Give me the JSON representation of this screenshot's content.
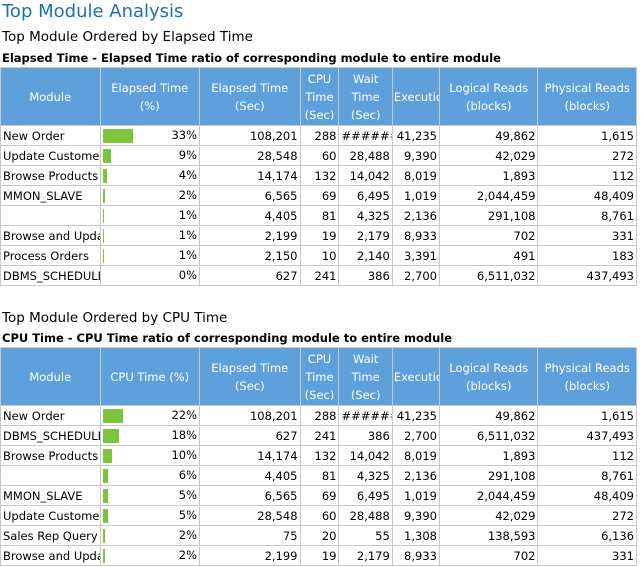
{
  "page": {
    "title": "Top Module Analysis"
  },
  "colors": {
    "header_bg": "#5ea0dc",
    "header_text": "#ffffff",
    "bar": "#7dc43d",
    "title": "#1f6fb3"
  },
  "sections": [
    {
      "title": "Top Module Ordered by Elapsed Time",
      "subtitle": "Elapsed Time - Elapsed Time ratio of corresponding module to entire module",
      "headers": [
        "Module",
        "Elapsed Time (%)",
        "Elapsed Time (Sec)",
        "CPU Time (Sec)",
        "Wait Time (Sec)",
        "Executions",
        "Logical Reads (blocks)",
        "Physical Reads (blocks)"
      ],
      "rows": [
        {
          "module": "New Order",
          "pct": "33%",
          "pct_value": 33,
          "elapsed": "108,201",
          "cpu": "288",
          "wait": "######",
          "exec": "41,235",
          "logical": "49,862",
          "physical": "1,615"
        },
        {
          "module": "Update Customer",
          "pct": "9%",
          "pct_value": 9,
          "elapsed": "28,548",
          "cpu": "60",
          "wait": "28,488",
          "exec": "9,390",
          "logical": "42,029",
          "physical": "272"
        },
        {
          "module": "Browse Products",
          "pct": "4%",
          "pct_value": 4,
          "elapsed": "14,174",
          "cpu": "132",
          "wait": "14,042",
          "exec": "8,019",
          "logical": "1,893",
          "physical": "112"
        },
        {
          "module": "MMON_SLAVE",
          "pct": "2%",
          "pct_value": 2,
          "elapsed": "6,565",
          "cpu": "69",
          "wait": "6,495",
          "exec": "1,019",
          "logical": "2,044,459",
          "physical": "48,409"
        },
        {
          "module": "",
          "pct": "1%",
          "pct_value": 1,
          "elapsed": "4,405",
          "cpu": "81",
          "wait": "4,325",
          "exec": "2,136",
          "logical": "291,108",
          "physical": "8,761"
        },
        {
          "module": "Browse and Update Orders",
          "pct": "1%",
          "pct_value": 1,
          "elapsed": "2,199",
          "cpu": "19",
          "wait": "2,179",
          "exec": "8,933",
          "logical": "702",
          "physical": "331"
        },
        {
          "module": "Process Orders",
          "pct": "1%",
          "pct_value": 1,
          "elapsed": "2,150",
          "cpu": "10",
          "wait": "2,140",
          "exec": "3,391",
          "logical": "491",
          "physical": "183"
        },
        {
          "module": "DBMS_SCHEDULER",
          "pct": "0%",
          "pct_value": 0,
          "elapsed": "627",
          "cpu": "241",
          "wait": "386",
          "exec": "2,700",
          "logical": "6,511,032",
          "physical": "437,493"
        }
      ]
    },
    {
      "title": "Top Module Ordered by CPU Time",
      "subtitle": "CPU Time - CPU Time ratio of corresponding module to entire module",
      "headers": [
        "Module",
        "CPU Time (%)",
        "Elapsed Time (Sec)",
        "CPU Time (Sec)",
        "Wait Time (Sec)",
        "Executions",
        "Logical Reads (blocks)",
        "Physical Reads (blocks)"
      ],
      "rows": [
        {
          "module": "New Order",
          "pct": "22%",
          "pct_value": 22,
          "elapsed": "108,201",
          "cpu": "288",
          "wait": "######",
          "exec": "41,235",
          "logical": "49,862",
          "physical": "1,615"
        },
        {
          "module": "DBMS_SCHEDULER",
          "pct": "18%",
          "pct_value": 18,
          "elapsed": "627",
          "cpu": "241",
          "wait": "386",
          "exec": "2,700",
          "logical": "6,511,032",
          "physical": "437,493"
        },
        {
          "module": "Browse Products",
          "pct": "10%",
          "pct_value": 10,
          "elapsed": "14,174",
          "cpu": "132",
          "wait": "14,042",
          "exec": "8,019",
          "logical": "1,893",
          "physical": "112"
        },
        {
          "module": "",
          "pct": "6%",
          "pct_value": 6,
          "elapsed": "4,405",
          "cpu": "81",
          "wait": "4,325",
          "exec": "2,136",
          "logical": "291,108",
          "physical": "8,761"
        },
        {
          "module": "MMON_SLAVE",
          "pct": "5%",
          "pct_value": 5,
          "elapsed": "6,565",
          "cpu": "69",
          "wait": "6,495",
          "exec": "1,019",
          "logical": "2,044,459",
          "physical": "48,409"
        },
        {
          "module": "Update Customer",
          "pct": "5%",
          "pct_value": 5,
          "elapsed": "28,548",
          "cpu": "60",
          "wait": "28,488",
          "exec": "9,390",
          "logical": "42,029",
          "physical": "272"
        },
        {
          "module": "Sales Rep Query",
          "pct": "2%",
          "pct_value": 2,
          "elapsed": "75",
          "cpu": "20",
          "wait": "55",
          "exec": "1,308",
          "logical": "138,593",
          "physical": "6,136"
        },
        {
          "module": "Browse and Update Orders",
          "pct": "2%",
          "pct_value": 2,
          "elapsed": "2,199",
          "cpu": "19",
          "wait": "2,179",
          "exec": "8,933",
          "logical": "702",
          "physical": "331"
        }
      ]
    }
  ]
}
